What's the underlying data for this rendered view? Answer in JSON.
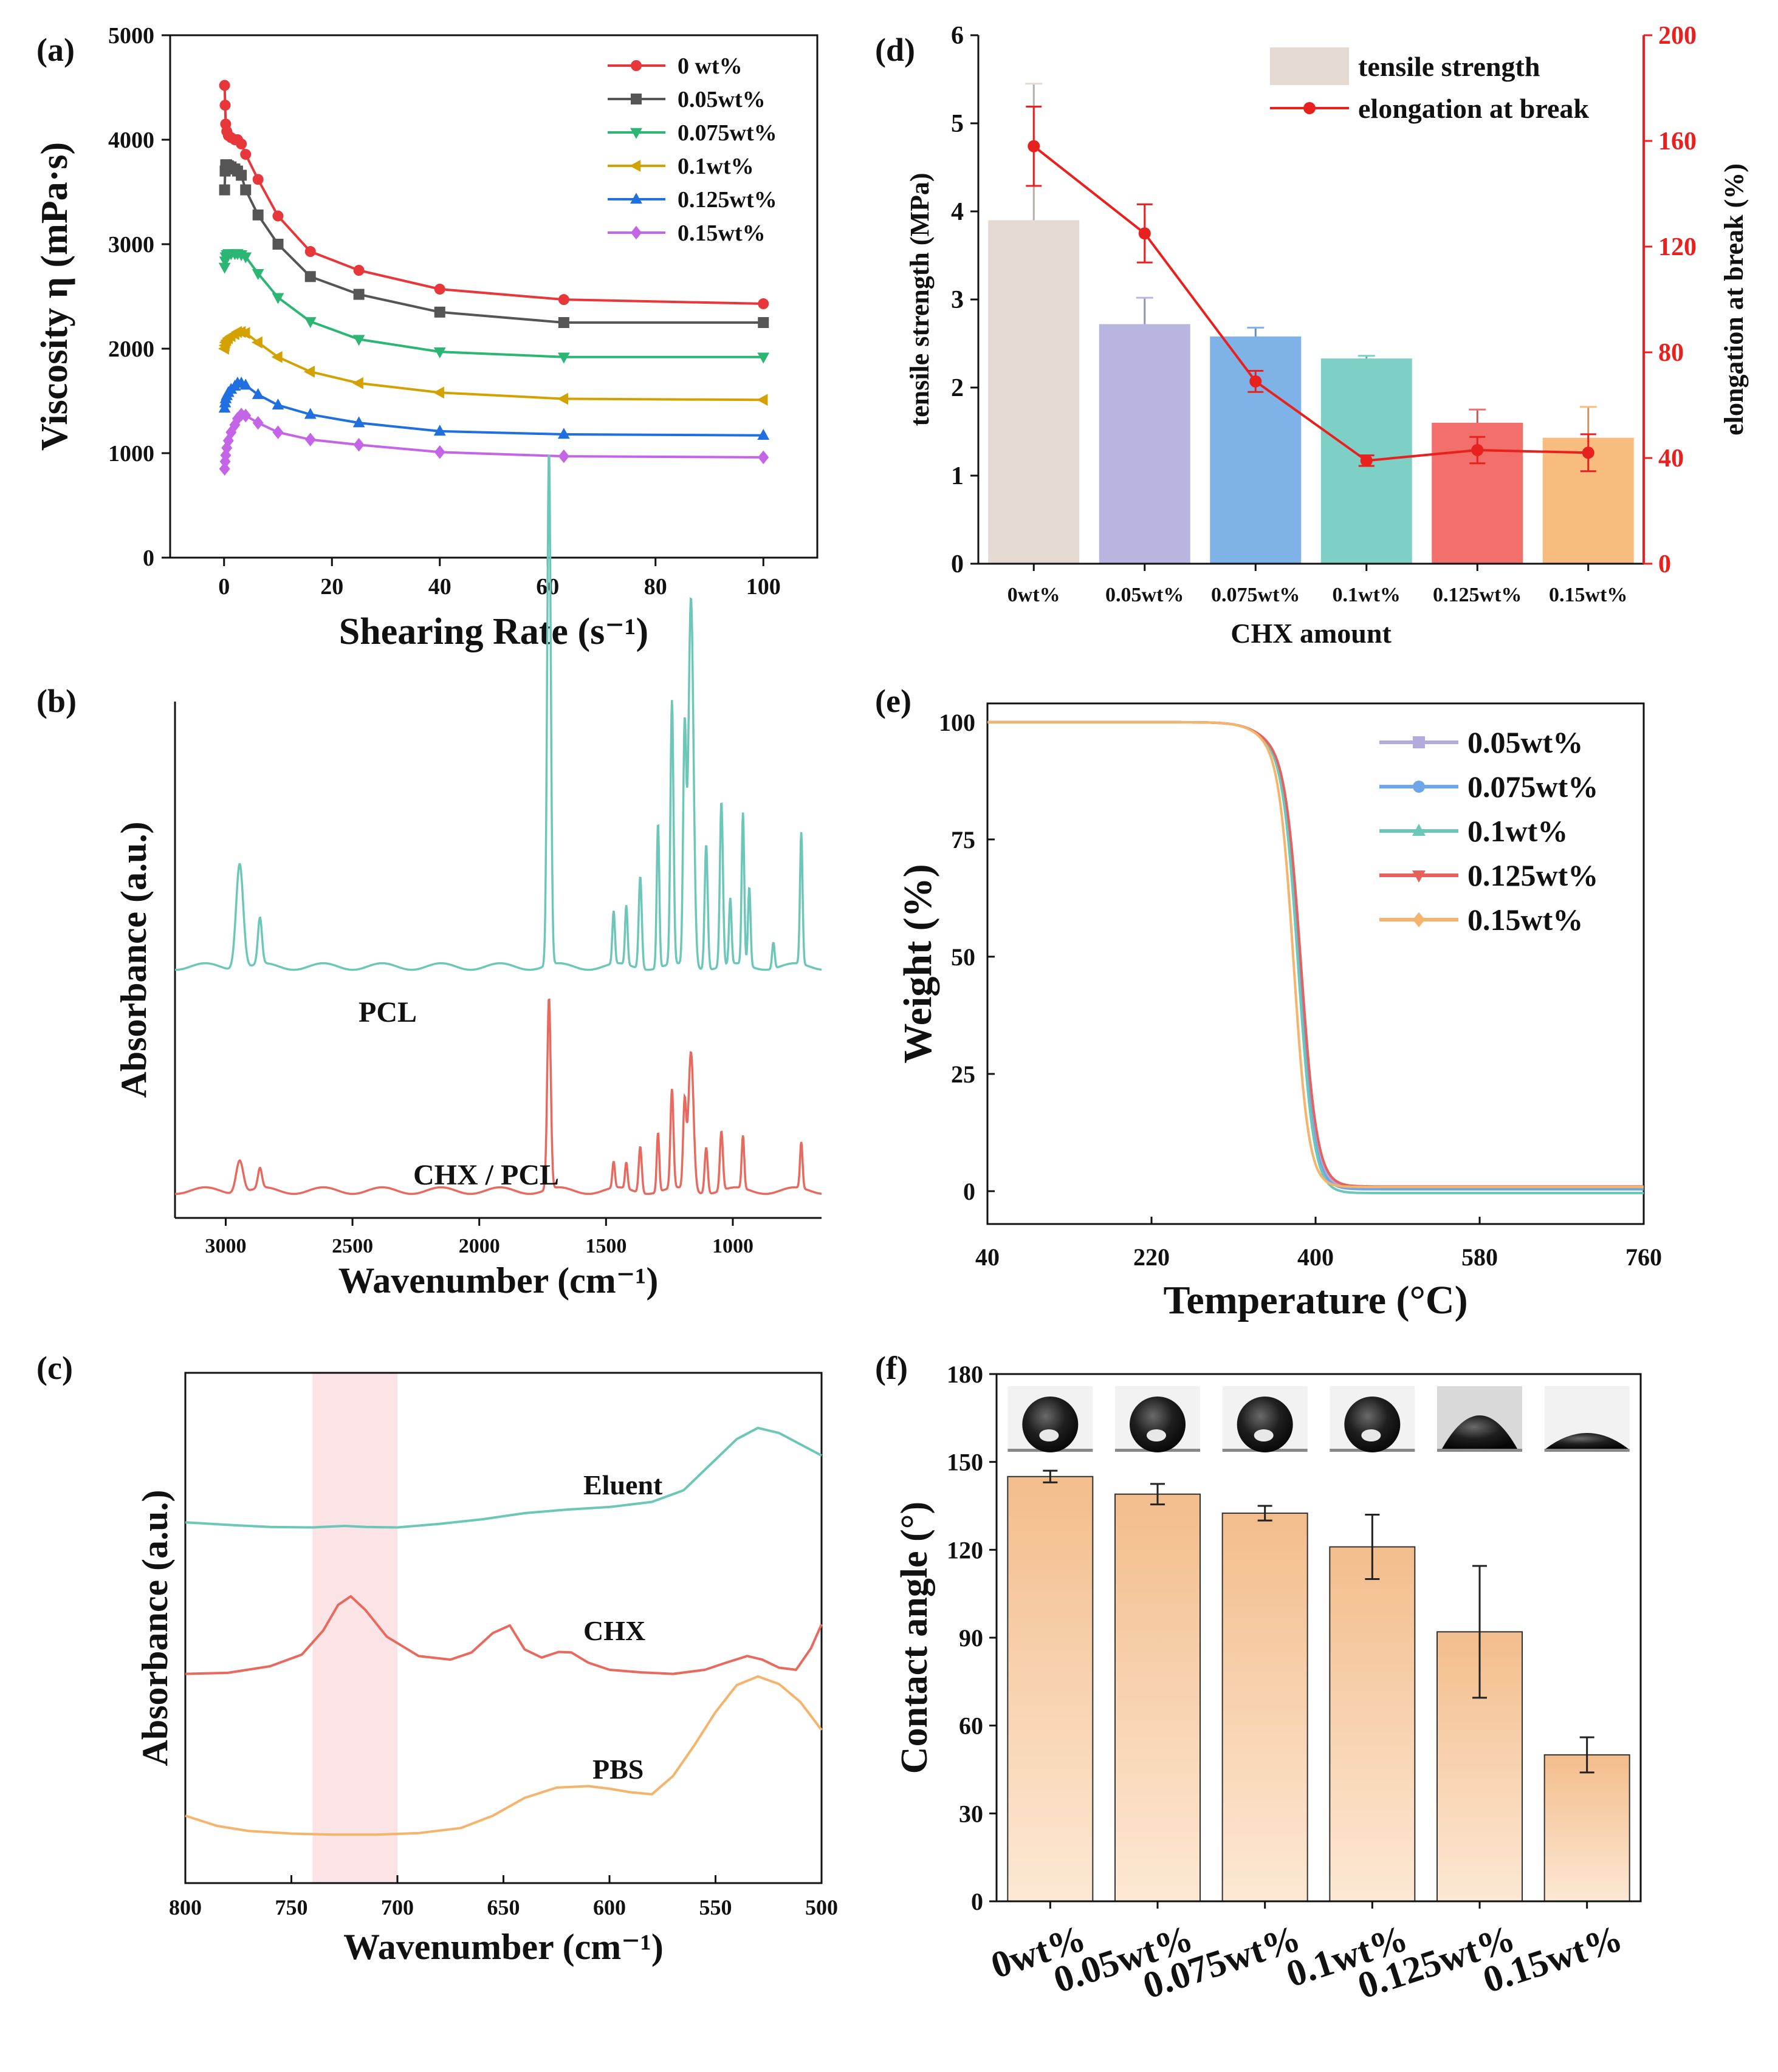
{
  "figure": {
    "panel_labels": [
      "(a)",
      "(b)",
      "(c)",
      "(d)",
      "(e)",
      "(f)"
    ]
  },
  "chart_data": [
    {
      "id": "a",
      "type": "line",
      "xlabel": "Shearing Rate (s⁻¹)",
      "ylabel": "Viscosity η (mPa·s)",
      "xlim": [
        -10,
        110
      ],
      "ylim": [
        0,
        5000
      ],
      "xticks": [
        0,
        20,
        40,
        60,
        80,
        100
      ],
      "yticks": [
        0,
        1000,
        2000,
        3000,
        4000,
        5000
      ],
      "legend_position": "top-right",
      "x": [
        0.1,
        0.2,
        0.3,
        0.5,
        0.8,
        1.3,
        2,
        2.5,
        3.2,
        4,
        6.3,
        10,
        16,
        25,
        40,
        63,
        100
      ],
      "series": [
        {
          "name": "0 wt%",
          "color": "#e8373b",
          "marker": "circle",
          "values": [
            4520,
            4330,
            4150,
            4080,
            4040,
            4020,
            4000,
            4000,
            3960,
            3860,
            3620,
            3270,
            2930,
            2750,
            2570,
            2470,
            2430
          ]
        },
        {
          "name": "0.05wt%",
          "color": "#555555",
          "marker": "square",
          "values": [
            3520,
            3700,
            3760,
            3760,
            3750,
            3740,
            3720,
            3700,
            3660,
            3520,
            3280,
            3000,
            2690,
            2520,
            2350,
            2250,
            2250
          ]
        },
        {
          "name": "0.075wt%",
          "color": "#2bb673",
          "marker": "triangle-down",
          "values": [
            2780,
            2840,
            2880,
            2900,
            2910,
            2910,
            2910,
            2910,
            2900,
            2880,
            2720,
            2490,
            2260,
            2090,
            1970,
            1920,
            1920
          ]
        },
        {
          "name": "0.1wt%",
          "color": "#d4a200",
          "marker": "triangle-left",
          "values": [
            2000,
            2030,
            2060,
            2080,
            2100,
            2120,
            2140,
            2160,
            2160,
            2150,
            2060,
            1920,
            1780,
            1670,
            1580,
            1520,
            1510
          ]
        },
        {
          "name": "0.125wt%",
          "color": "#1f6fe0",
          "marker": "triangle-up",
          "values": [
            1430,
            1480,
            1520,
            1550,
            1580,
            1610,
            1640,
            1670,
            1670,
            1650,
            1560,
            1460,
            1370,
            1290,
            1210,
            1180,
            1170
          ]
        },
        {
          "name": "0.15wt%",
          "color": "#c464e6",
          "marker": "diamond",
          "values": [
            850,
            920,
            980,
            1050,
            1120,
            1200,
            1270,
            1330,
            1370,
            1360,
            1290,
            1200,
            1130,
            1080,
            1010,
            970,
            960
          ]
        }
      ]
    },
    {
      "id": "b",
      "type": "line",
      "xlabel": "Wavenumber (cm⁻¹)",
      "ylabel": "Absorbance (a.u.)",
      "xlim": [
        3200,
        650
      ],
      "xticks": [
        3000,
        2500,
        2000,
        1500,
        1000
      ],
      "series": [
        {
          "name": "PCL",
          "color": "#6cc7b9",
          "offset": 0.34,
          "peaks": [
            [
              2945,
              0.16,
              14
            ],
            [
              2865,
              0.07,
              8
            ],
            [
              1725,
              0.78,
              7
            ],
            [
              1470,
              0.08,
              5
            ],
            [
              1420,
              0.09,
              5
            ],
            [
              1365,
              0.14,
              6
            ],
            [
              1295,
              0.22,
              5
            ],
            [
              1240,
              0.4,
              6
            ],
            [
              1190,
              0.35,
              6
            ],
            [
              1165,
              0.56,
              10
            ],
            [
              1105,
              0.19,
              6
            ],
            [
              1045,
              0.25,
              6
            ],
            [
              1010,
              0.1,
              5
            ],
            [
              960,
              0.23,
              5
            ],
            [
              935,
              0.12,
              5
            ],
            [
              840,
              0.04,
              5
            ],
            [
              730,
              0.2,
              5
            ]
          ]
        },
        {
          "name": "CHX / PCL",
          "color": "#e86a5e",
          "offset": 0.0,
          "peaks": [
            [
              2945,
              0.05,
              14
            ],
            [
              2865,
              0.03,
              8
            ],
            [
              1725,
              0.29,
              7
            ],
            [
              1470,
              0.04,
              5
            ],
            [
              1420,
              0.04,
              5
            ],
            [
              1365,
              0.07,
              6
            ],
            [
              1295,
              0.09,
              5
            ],
            [
              1240,
              0.15,
              6
            ],
            [
              1190,
              0.13,
              6
            ],
            [
              1165,
              0.21,
              10
            ],
            [
              1105,
              0.07,
              6
            ],
            [
              1045,
              0.09,
              6
            ],
            [
              960,
              0.08,
              5
            ],
            [
              730,
              0.07,
              5
            ]
          ]
        }
      ]
    },
    {
      "id": "c",
      "type": "line",
      "xlabel": "Wavenumber (cm⁻¹)",
      "ylabel": "Absorbance (a.u.)",
      "xlim": [
        800,
        500
      ],
      "xticks": [
        800,
        750,
        700,
        650,
        600,
        550,
        500
      ],
      "highlight_range": [
        740,
        700
      ],
      "series": [
        {
          "name": "Eluent",
          "color": "#6cc7b9",
          "x": [
            800,
            780,
            760,
            740,
            725,
            715,
            700,
            680,
            660,
            640,
            620,
            600,
            580,
            565,
            555,
            540,
            530,
            520,
            510,
            500
          ],
          "y": [
            0.707,
            0.702,
            0.698,
            0.697,
            0.7,
            0.698,
            0.697,
            0.704,
            0.713,
            0.725,
            0.732,
            0.737,
            0.747,
            0.77,
            0.81,
            0.87,
            0.892,
            0.882,
            0.86,
            0.838
          ]
        },
        {
          "name": "CHX",
          "color": "#e86a5e",
          "x": [
            800,
            780,
            760,
            745,
            735,
            728,
            722,
            715,
            705,
            690,
            675,
            665,
            655,
            647,
            640,
            632,
            624,
            618,
            610,
            600,
            585,
            570,
            555,
            545,
            535,
            528,
            520,
            512,
            505,
            500
          ],
          "y": [
            0.41,
            0.412,
            0.425,
            0.448,
            0.495,
            0.545,
            0.562,
            0.535,
            0.483,
            0.445,
            0.438,
            0.452,
            0.49,
            0.505,
            0.458,
            0.442,
            0.453,
            0.452,
            0.432,
            0.418,
            0.413,
            0.41,
            0.418,
            0.432,
            0.445,
            0.438,
            0.422,
            0.418,
            0.46,
            0.507
          ]
        },
        {
          "name": "PBS",
          "color": "#f5b36b",
          "x": [
            800,
            785,
            770,
            750,
            730,
            710,
            690,
            670,
            655,
            640,
            625,
            610,
            600,
            590,
            580,
            570,
            560,
            550,
            540,
            530,
            520,
            510,
            500
          ],
          "y": [
            0.132,
            0.112,
            0.102,
            0.097,
            0.095,
            0.095,
            0.098,
            0.108,
            0.132,
            0.167,
            0.187,
            0.19,
            0.185,
            0.178,
            0.174,
            0.21,
            0.27,
            0.335,
            0.388,
            0.405,
            0.39,
            0.355,
            0.3
          ]
        }
      ]
    },
    {
      "id": "d",
      "type": "bar",
      "categories": [
        "0wt%",
        "0.05wt%",
        "0.075wt%",
        "0.1wt%",
        "0.125wt%",
        "0.15wt%"
      ],
      "xlabel": "CHX amount",
      "ylabel": "tensile strength (MPa)",
      "ylabel_right": "elongation at break (%)",
      "ylim": [
        0,
        6
      ],
      "ylim_right": [
        0,
        200
      ],
      "yticks": [
        0,
        1,
        2,
        3,
        4,
        5,
        6
      ],
      "yticks_right": [
        0,
        40,
        80,
        120,
        160,
        200
      ],
      "legend_position": "top-right",
      "series": [
        {
          "name": "tensile strength",
          "type": "bar",
          "values": [
            3.9,
            2.72,
            2.58,
            2.33,
            1.6,
            1.43
          ],
          "errors": [
            1.55,
            0.3,
            0.1,
            0.03,
            0.15,
            0.35
          ],
          "colors": [
            "#e4dad1",
            "#b8b6e0",
            "#7fb3e8",
            "#7ecfc6",
            "#f36f6b",
            "#f8bd7e"
          ]
        },
        {
          "name": "elongation at break",
          "type": "line",
          "color": "#e8201e",
          "values": [
            158,
            125,
            69,
            39,
            43,
            42
          ],
          "errors": [
            15,
            11,
            4,
            2,
            5,
            7
          ]
        }
      ]
    },
    {
      "id": "e",
      "type": "line",
      "xlabel": "Temperature (°C)",
      "ylabel": "Weight (%)",
      "xlim": [
        40,
        760
      ],
      "ylim": [
        -7,
        104
      ],
      "xticks": [
        40,
        220,
        400,
        580,
        760
      ],
      "yticks": [
        0,
        25,
        50,
        75,
        100
      ],
      "legend_position": "top-right",
      "series": [
        {
          "name": "0.05wt%",
          "color": "#b3abdb",
          "t50": 383,
          "k": 8.6,
          "residual": 0.7
        },
        {
          "name": "0.075wt%",
          "color": "#6ea6e8",
          "t50": 382,
          "k": 8.4,
          "residual": 0.4
        },
        {
          "name": "0.1wt%",
          "color": "#6cc7b9",
          "t50": 381,
          "k": 8.6,
          "residual": -0.4
        },
        {
          "name": "0.125wt%",
          "color": "#e8605c",
          "t50": 384,
          "k": 8.8,
          "residual": 1.0
        },
        {
          "name": "0.15wt%",
          "color": "#f5b36b",
          "t50": 376,
          "k": 8.2,
          "residual": 0.9
        }
      ]
    },
    {
      "id": "f",
      "type": "bar",
      "categories": [
        "0wt%",
        "0.05wt%",
        "0.075wt%",
        "0.1wt%",
        "0.125wt%",
        "0.15wt%"
      ],
      "ylabel": "Contact angle (°)",
      "ylim": [
        0,
        180
      ],
      "yticks": [
        0,
        30,
        60,
        90,
        120,
        150,
        180
      ],
      "values": [
        145,
        139,
        132.5,
        121,
        92,
        50
      ],
      "errors": [
        2,
        3.5,
        2.5,
        11,
        22.5,
        6
      ],
      "bar_color": "#f7c89b",
      "droplet_angles": [
        150,
        143,
        136,
        148,
        80,
        30
      ]
    }
  ]
}
